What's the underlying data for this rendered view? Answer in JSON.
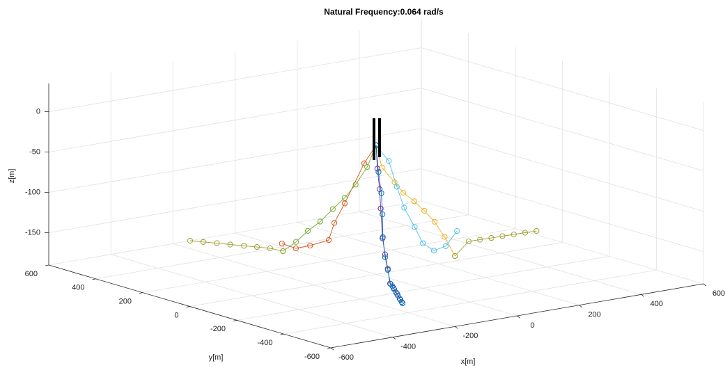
{
  "chart_data": {
    "type": "line3d",
    "title": "Natural Frequency:0.064 rad/s",
    "xlabel": "x[m]",
    "ylabel": "y[m]",
    "zlabel": "z[m]",
    "xlim": [
      -600,
      600
    ],
    "ylim": [
      -600,
      600
    ],
    "zlim": [
      -190,
      35
    ],
    "xticks": [
      -600,
      -400,
      -200,
      0,
      200,
      400,
      600
    ],
    "yticks": [
      -600,
      -400,
      -200,
      0,
      200,
      400,
      600
    ],
    "zticks": [
      -150,
      -100,
      -50,
      0
    ],
    "grid": true,
    "series": [
      {
        "color": "#d95319",
        "x": [
          0,
          8,
          20,
          26,
          30,
          -46,
          -94,
          -89
        ],
        "y": [
          0,
          61,
          160,
          212,
          241,
          220,
          217,
          283
        ],
        "z": [
          -30,
          -58,
          -117,
          -146,
          -170,
          -170,
          -170,
          -170
        ]
      },
      {
        "color": "#77ac30",
        "x": [
          0,
          -12,
          -28,
          -43,
          -60,
          -77,
          -94,
          -110,
          -128
        ],
        "y": [
          0,
          22,
          50,
          77,
          105,
          136,
          166,
          195,
          227
        ],
        "z": [
          -30,
          -58,
          -81,
          -99,
          -114,
          -131,
          -144,
          -159,
          -172
        ]
      },
      {
        "color": "#9f9f33",
        "x": [
          -128,
          -146,
          -164,
          -182,
          -201,
          -219,
          -238,
          -256
        ],
        "y": [
          227,
          258,
          290,
          322,
          355,
          388,
          421,
          453
        ],
        "z": [
          -172,
          -170,
          -170,
          -170,
          -170,
          -170,
          -170,
          -170
        ]
      },
      {
        "color": "#edb120",
        "x": [
          0,
          20,
          61,
          90,
          126,
          159,
          193,
          226,
          260
        ],
        "y": [
          0,
          1,
          2,
          3,
          4,
          5,
          6,
          7,
          8
        ],
        "z": [
          -30,
          -59,
          -80,
          -95,
          -108,
          -122,
          -138,
          -159,
          -185
        ]
      },
      {
        "color": "#9f9f33",
        "x": [
          260,
          305,
          340,
          375,
          410,
          445,
          480,
          515
        ],
        "y": [
          8,
          9,
          7,
          5,
          4,
          2,
          0,
          -2
        ],
        "z": [
          -185,
          -170,
          -170,
          -170,
          -170,
          -170,
          -170,
          -170
        ]
      },
      {
        "color": "#4dbeee",
        "x": [
          0,
          18,
          29,
          39,
          54,
          65,
          81,
          97,
          113
        ],
        "y": [
          0,
          -30,
          -50,
          -68,
          -93,
          -113,
          -139,
          -168,
          -195
        ],
        "z": [
          -30,
          -48,
          -79,
          -104,
          -127,
          -146,
          -154,
          -147,
          -127
        ]
      },
      {
        "color": "#7e2f8e",
        "x": [
          0,
          -14,
          -34,
          -48,
          -61,
          -89,
          -116,
          -136,
          -170,
          -204,
          -238,
          -257
        ],
        "y": [
          0,
          -24,
          -60,
          -83,
          -108,
          -156,
          -203,
          -239,
          -299,
          -359,
          -418,
          -452
        ],
        "z": [
          -30,
          -56,
          -77,
          -98,
          -132,
          -146,
          -158,
          -172,
          -170,
          -170,
          -170,
          -170
        ]
      },
      {
        "color": "#0072bd",
        "x": [
          0,
          -12,
          -30,
          -46,
          -63,
          -86,
          -112,
          -142,
          -160,
          -178,
          -196,
          -214,
          -232,
          -250,
          -257
        ],
        "y": [
          0,
          -26,
          -62,
          -88,
          -112,
          -152,
          -198,
          -249,
          -281,
          -312,
          -344,
          -376,
          -407,
          -439,
          -452
        ],
        "z": [
          -30,
          -60,
          -82,
          -105,
          -130,
          -150,
          -160,
          -171,
          -170,
          -170,
          -170,
          -170,
          -170,
          -170,
          -170
        ]
      }
    ]
  }
}
